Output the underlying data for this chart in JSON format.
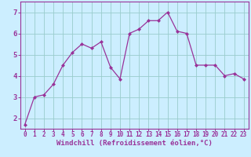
{
  "x": [
    0,
    1,
    2,
    3,
    4,
    5,
    6,
    7,
    8,
    9,
    10,
    11,
    12,
    13,
    14,
    15,
    16,
    17,
    18,
    19,
    20,
    21,
    22,
    23
  ],
  "y": [
    1.7,
    3.0,
    3.1,
    3.6,
    4.5,
    5.1,
    5.5,
    5.3,
    5.6,
    4.4,
    3.85,
    6.0,
    6.2,
    6.6,
    6.6,
    7.0,
    6.1,
    6.0,
    4.5,
    4.5,
    4.5,
    4.0,
    4.1,
    3.85
  ],
  "line_color": "#993399",
  "marker": "D",
  "marker_size": 2.0,
  "bg_color": "#cceeff",
  "grid_color": "#99cccc",
  "xlabel": "Windchill (Refroidissement éolien,°C)",
  "xlim": [
    -0.5,
    23.5
  ],
  "ylim": [
    1.5,
    7.5
  ],
  "yticks": [
    2,
    3,
    4,
    5,
    6,
    7
  ],
  "xticks": [
    0,
    1,
    2,
    3,
    4,
    5,
    6,
    7,
    8,
    9,
    10,
    11,
    12,
    13,
    14,
    15,
    16,
    17,
    18,
    19,
    20,
    21,
    22,
    23
  ],
  "xlabel_fontsize": 6.5,
  "ytick_fontsize": 6.5,
  "xtick_fontsize": 5.5,
  "line_color_spine": "#993399"
}
